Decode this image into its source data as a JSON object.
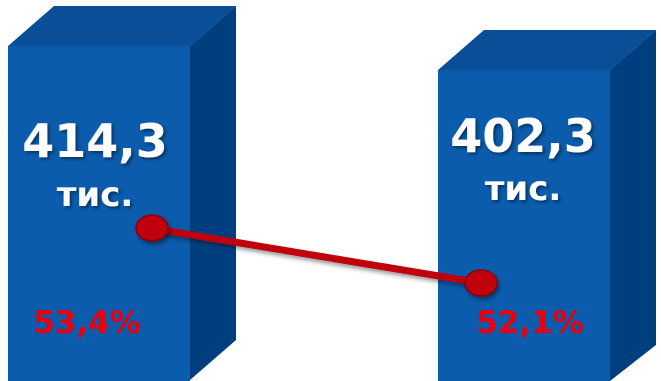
{
  "chart_data": {
    "type": "bar",
    "categories": [
      "",
      ""
    ],
    "values": [
      414.3,
      402.3
    ],
    "value_labels": [
      "414,3",
      "402,3"
    ],
    "unit_label": "тис.",
    "line_series": {
      "type": "line",
      "values": [
        53.4,
        52.1
      ],
      "labels": [
        "53,4%",
        "52,1%"
      ]
    },
    "colors": {
      "bar_front": "#0b5cad",
      "bar_side": "#003f7f",
      "bar_top": "#0a4e97",
      "line": "#bf0010",
      "marker": "#c0000c",
      "pct_text": "#e8000f",
      "value_text": "#ffffff"
    }
  }
}
